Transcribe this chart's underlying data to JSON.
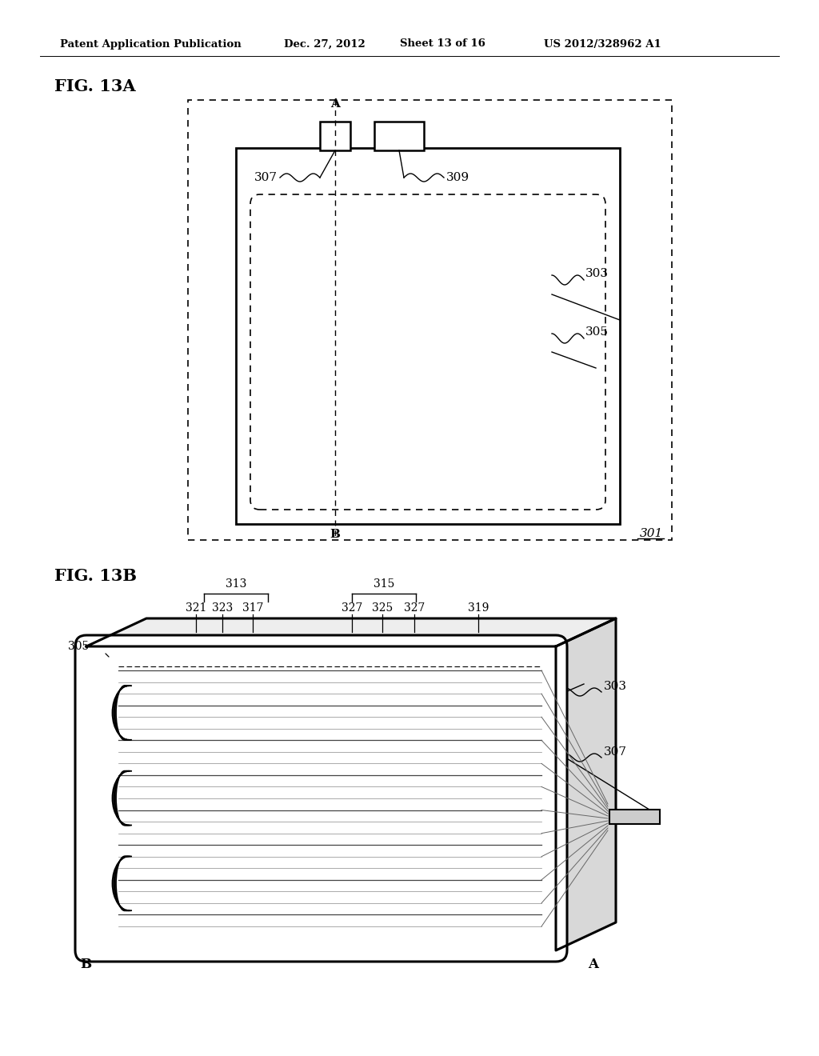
{
  "bg_color": "#ffffff",
  "header_text": "Patent Application Publication",
  "header_date": "Dec. 27, 2012",
  "header_sheet": "Sheet 13 of 16",
  "header_patent": "US 2012/328962 A1",
  "fig13a_label": "FIG. 13A",
  "fig13b_label": "FIG. 13B",
  "line_color": "#000000",
  "dashed_color": "#000000",
  "gray_light": "#d8d8d8",
  "gray_mid": "#b0b0b0"
}
